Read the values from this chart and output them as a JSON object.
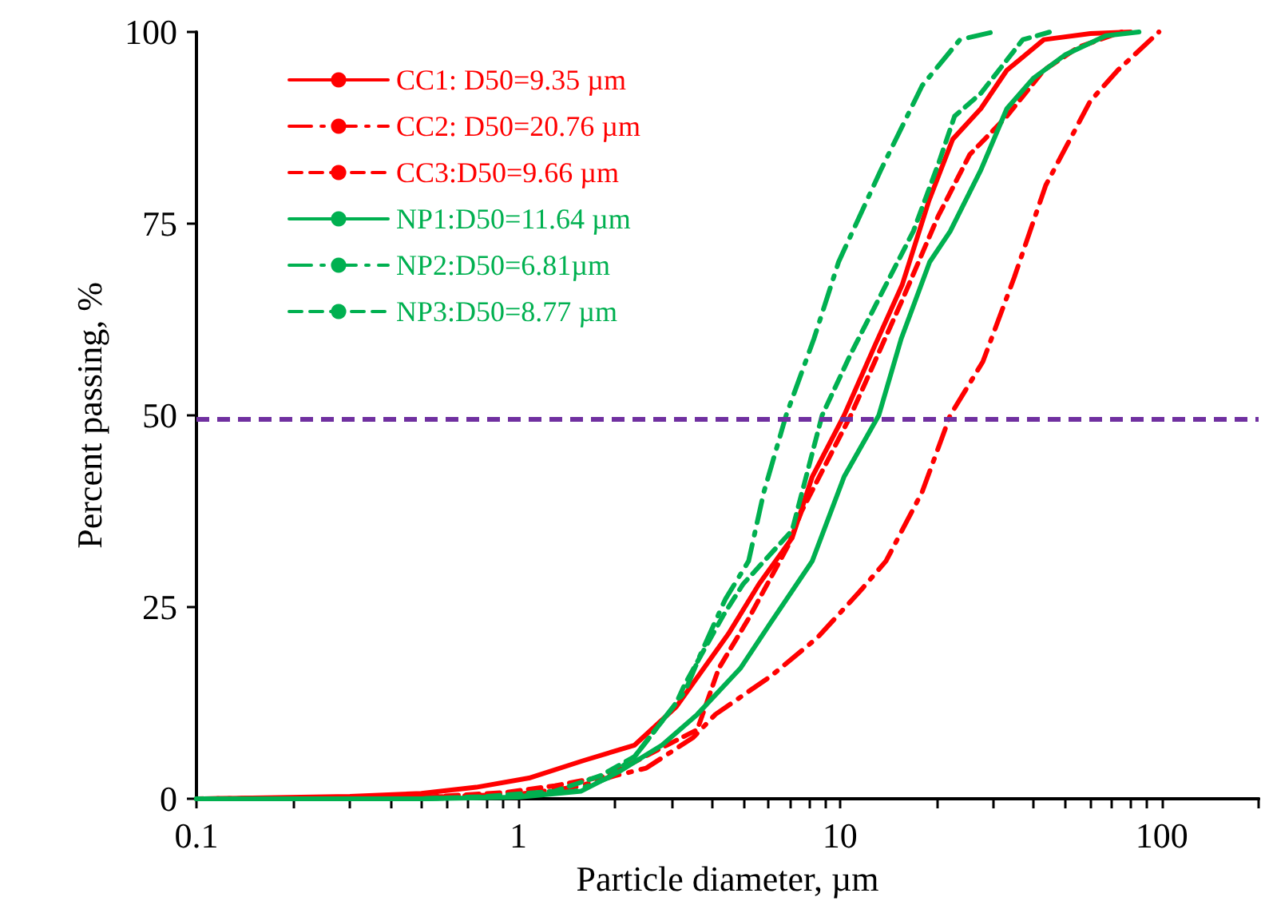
{
  "chart_data": {
    "type": "line",
    "xlabel": "Particle diameter, µm",
    "ylabel": "Percent passing, %",
    "log": "x",
    "xlim": [
      0.1,
      200
    ],
    "ylim": [
      0,
      100
    ],
    "xticks": [
      0.1,
      {
        "value": 0.2,
        "label": null
      },
      {
        "value": 0.3,
        "label": null
      },
      {
        "value": 0.4,
        "label": null
      },
      {
        "value": 0.5,
        "label": null
      },
      {
        "value": 0.6,
        "label": null
      },
      {
        "value": 0.7,
        "label": null
      },
      {
        "value": 0.8,
        "label": null
      },
      {
        "value": 0.9,
        "label": null
      },
      1,
      {
        "value": 2,
        "label": null
      },
      {
        "value": 3,
        "label": null
      },
      {
        "value": 4,
        "label": null
      },
      {
        "value": 5,
        "label": null
      },
      {
        "value": 6,
        "label": null
      },
      {
        "value": 7,
        "label": null
      },
      {
        "value": 8,
        "label": null
      },
      {
        "value": 9,
        "label": null
      },
      10,
      {
        "value": 20,
        "label": null
      },
      {
        "value": 30,
        "label": null
      },
      {
        "value": 40,
        "label": null
      },
      {
        "value": 50,
        "label": null
      },
      {
        "value": 60,
        "label": null
      },
      {
        "value": 70,
        "label": null
      },
      {
        "value": 80,
        "label": null
      },
      {
        "value": 90,
        "label": null
      },
      100,
      {
        "value": 200,
        "label": null
      }
    ],
    "yticks": [
      0,
      25,
      50,
      75,
      100
    ],
    "grid": false,
    "legend": "top left",
    "marker": "none",
    "ref_lines": [
      {
        "axis": "y",
        "value": 49.5,
        "color": "#7030a0",
        "line_style": "dashed"
      }
    ],
    "series": [
      {
        "name": "CC1: D50=9.35 µm",
        "color": "#ff0000",
        "line_style": "solid",
        "x": [
          0.1,
          0.3,
          0.5,
          0.74,
          1.08,
          1.6,
          2.3,
          3.1,
          4.5,
          5.6,
          7.1,
          8.2,
          10.3,
          12.8,
          15.6,
          18.9,
          22.4,
          27.4,
          33,
          43,
          60,
          80
        ],
        "values": [
          0,
          0.3,
          0.7,
          1.5,
          2.7,
          5,
          7,
          12,
          21.5,
          28,
          34,
          42,
          50,
          59,
          67,
          78,
          86,
          90,
          95,
          99,
          99.8,
          100
        ]
      },
      {
        "name": "CC2: D50=20.76 µm",
        "color": "#ff0000",
        "line_style": "dashdot",
        "x": [
          0.1,
          0.5,
          1,
          1.5,
          2,
          2.5,
          3.5,
          4.1,
          6.1,
          8.5,
          11.5,
          13.9,
          18,
          22,
          27.8,
          34.8,
          43.6,
          60,
          73,
          98
        ],
        "values": [
          0,
          0.2,
          0.6,
          1.5,
          3,
          4,
          8,
          11,
          16,
          21,
          27,
          31,
          40,
          50,
          57,
          68,
          80,
          91,
          95,
          100
        ]
      },
      {
        "name": "CC3:D50=9.66 µm",
        "color": "#ff0000",
        "line_style": "dashed",
        "x": [
          0.1,
          0.5,
          0.9,
          1.3,
          1.9,
          2.9,
          3.6,
          4.2,
          5.2,
          6.9,
          7.6,
          10.8,
          15.6,
          20.2,
          25.3,
          33,
          43,
          55,
          75
        ],
        "values": [
          0,
          0.2,
          0.8,
          1.7,
          3,
          7,
          9,
          17,
          23.5,
          33,
          37.5,
          50,
          65,
          76,
          84,
          89,
          95,
          98,
          100
        ]
      },
      {
        "name": "NP1:D50=11.64 µm",
        "color": "#00b050",
        "line_style": "solid",
        "x": [
          0.1,
          0.5,
          1,
          1.57,
          2.05,
          2.8,
          3.6,
          4.9,
          6.1,
          8.2,
          10.3,
          13.2,
          15.5,
          19,
          22,
          27.4,
          33,
          40,
          50,
          67,
          85
        ],
        "values": [
          0,
          0,
          0.2,
          1,
          3.5,
          7,
          11,
          17,
          23,
          31,
          42,
          50,
          60,
          70,
          74,
          82,
          90,
          94,
          97,
          99.5,
          100
        ]
      },
      {
        "name": "NP2:D50=6.81µm",
        "color": "#00b050",
        "line_style": "dashdot",
        "x": [
          0.1,
          0.5,
          1,
          1.5,
          1.9,
          2.3,
          3.3,
          3.7,
          4.4,
          5.2,
          5.8,
          6.8,
          8.3,
          9.9,
          13.4,
          18,
          23.6,
          30
        ],
        "values": [
          0,
          0,
          0.3,
          1,
          2.7,
          5.5,
          14,
          19,
          26,
          31,
          40,
          50,
          60,
          70,
          82,
          93,
          99,
          100
        ]
      },
      {
        "name": "NP3:D50=8.77 µm",
        "color": "#00b050",
        "line_style": "dashed",
        "x": [
          0.1,
          0.5,
          0.8,
          1.3,
          1.8,
          2.3,
          3.1,
          3.3,
          4.35,
          5,
          7.1,
          8.8,
          10.8,
          13.5,
          16.9,
          20.3,
          22.7,
          27.4,
          37,
          45
        ],
        "values": [
          0,
          0,
          0.3,
          1,
          3,
          5.5,
          12.5,
          15,
          24,
          28,
          35,
          50,
          58,
          66,
          74,
          83,
          89,
          92,
          99,
          100
        ]
      }
    ]
  }
}
